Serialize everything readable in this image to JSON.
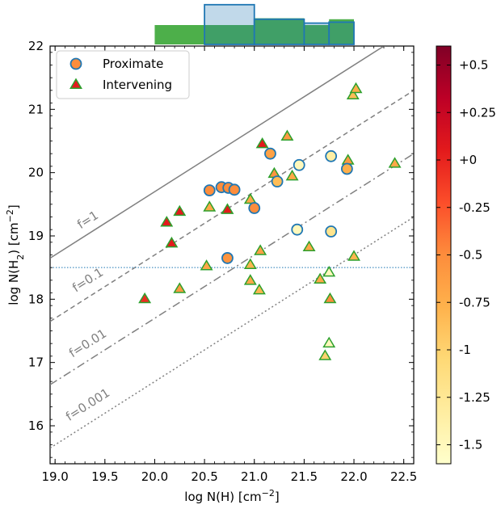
{
  "chart_data": {
    "type": "scatter",
    "xlabel": "log N(H) [cm$^{-2}$]",
    "ylabel": "log N(H$_2$) [cm$^{-2}$]",
    "xlim": [
      18.95,
      22.6
    ],
    "ylim": [
      15.4,
      22.0
    ],
    "xticks": [
      "19.0",
      "19.5",
      "20.0",
      "20.5",
      "21.0",
      "21.5",
      "22.0",
      "22.5"
    ],
    "yticks": [
      "16",
      "17",
      "18",
      "19",
      "20",
      "21",
      "22"
    ],
    "grid": false,
    "legend_location": "upper-left",
    "legend": [
      {
        "label": "Proximate",
        "marker": "circle"
      },
      {
        "label": "Intervening",
        "marker": "triangle"
      }
    ],
    "hline": 18.5,
    "fraction_lines": [
      {
        "label": "f=1",
        "f": 1,
        "style": "solid"
      },
      {
        "label": "f=0.1",
        "f": 0.1,
        "style": "dashed"
      },
      {
        "label": "f=0.01",
        "f": 0.01,
        "style": "dashdot"
      },
      {
        "label": "f=0.001",
        "f": 0.001,
        "style": "dotted"
      }
    ],
    "colorbar": {
      "ticks": [
        "+0.5",
        "+0.25",
        "+0",
        "-0.25",
        "-0.5",
        "-0.75",
        "-1",
        "-1.25",
        "-1.5"
      ],
      "values": [
        0.5,
        0.25,
        0,
        -0.25,
        -0.5,
        -0.75,
        -1,
        -1.25,
        -1.5
      ],
      "range": [
        -1.6,
        0.6
      ]
    },
    "histogram": {
      "bins": [
        20.0,
        20.5,
        21.0,
        21.5,
        21.75,
        22.0
      ],
      "intervening": [
        1.0,
        1.0,
        1.35,
        1.0,
        1.3
      ],
      "proximate": [
        0,
        2.05,
        1.3,
        1.1,
        1.15
      ],
      "intervening_color": "#4daf4a",
      "proximate_color": "#1f77b4"
    },
    "proximate": [
      {
        "x": 20.55,
        "y": 19.72,
        "z": -0.5
      },
      {
        "x": 20.67,
        "y": 19.77,
        "z": -0.5
      },
      {
        "x": 20.74,
        "y": 19.76,
        "z": -0.5
      },
      {
        "x": 20.8,
        "y": 19.73,
        "z": -0.5
      },
      {
        "x": 20.73,
        "y": 18.65,
        "z": -0.55
      },
      {
        "x": 21.0,
        "y": 19.44,
        "z": -0.5
      },
      {
        "x": 21.16,
        "y": 20.3,
        "z": -0.65
      },
      {
        "x": 21.23,
        "y": 19.86,
        "z": -0.85
      },
      {
        "x": 21.45,
        "y": 20.12,
        "z": -1.5
      },
      {
        "x": 21.43,
        "y": 19.1,
        "z": -1.5
      },
      {
        "x": 21.77,
        "y": 20.26,
        "z": -1.35
      },
      {
        "x": 21.77,
        "y": 19.07,
        "z": -1.2
      },
      {
        "x": 21.93,
        "y": 20.06,
        "z": -0.75
      }
    ],
    "intervening": [
      {
        "x": 19.9,
        "y": 18.0,
        "z": -0.05
      },
      {
        "x": 20.12,
        "y": 19.21,
        "z": 0.05
      },
      {
        "x": 20.17,
        "y": 18.88,
        "z": 0.05
      },
      {
        "x": 20.25,
        "y": 19.38,
        "z": 0.05
      },
      {
        "x": 20.25,
        "y": 18.16,
        "z": -0.6
      },
      {
        "x": 20.52,
        "y": 18.52,
        "z": -0.7
      },
      {
        "x": 20.55,
        "y": 19.45,
        "z": -0.7
      },
      {
        "x": 20.73,
        "y": 19.41,
        "z": 0.05
      },
      {
        "x": 20.96,
        "y": 19.57,
        "z": -0.7
      },
      {
        "x": 20.96,
        "y": 18.54,
        "z": -0.8
      },
      {
        "x": 20.96,
        "y": 18.29,
        "z": -0.7
      },
      {
        "x": 21.05,
        "y": 18.14,
        "z": -0.8
      },
      {
        "x": 21.06,
        "y": 18.76,
        "z": -0.65
      },
      {
        "x": 21.08,
        "y": 20.45,
        "z": 0.05
      },
      {
        "x": 21.2,
        "y": 19.98,
        "z": -0.55
      },
      {
        "x": 21.33,
        "y": 20.57,
        "z": -0.6
      },
      {
        "x": 21.38,
        "y": 19.94,
        "z": -0.7
      },
      {
        "x": 21.55,
        "y": 18.82,
        "z": -0.7
      },
      {
        "x": 21.66,
        "y": 18.31,
        "z": -0.7
      },
      {
        "x": 21.71,
        "y": 17.1,
        "z": -1.0
      },
      {
        "x": 21.75,
        "y": 17.3,
        "z": -1.5
      },
      {
        "x": 21.75,
        "y": 18.42,
        "z": -1.5
      },
      {
        "x": 21.76,
        "y": 18.0,
        "z": -0.5
      },
      {
        "x": 21.94,
        "y": 20.19,
        "z": -0.6
      },
      {
        "x": 22.0,
        "y": 18.67,
        "z": -0.8
      },
      {
        "x": 21.99,
        "y": 21.22,
        "z": -0.85
      },
      {
        "x": 22.02,
        "y": 21.32,
        "z": -0.75
      },
      {
        "x": 22.41,
        "y": 20.14,
        "z": -0.7
      }
    ]
  }
}
